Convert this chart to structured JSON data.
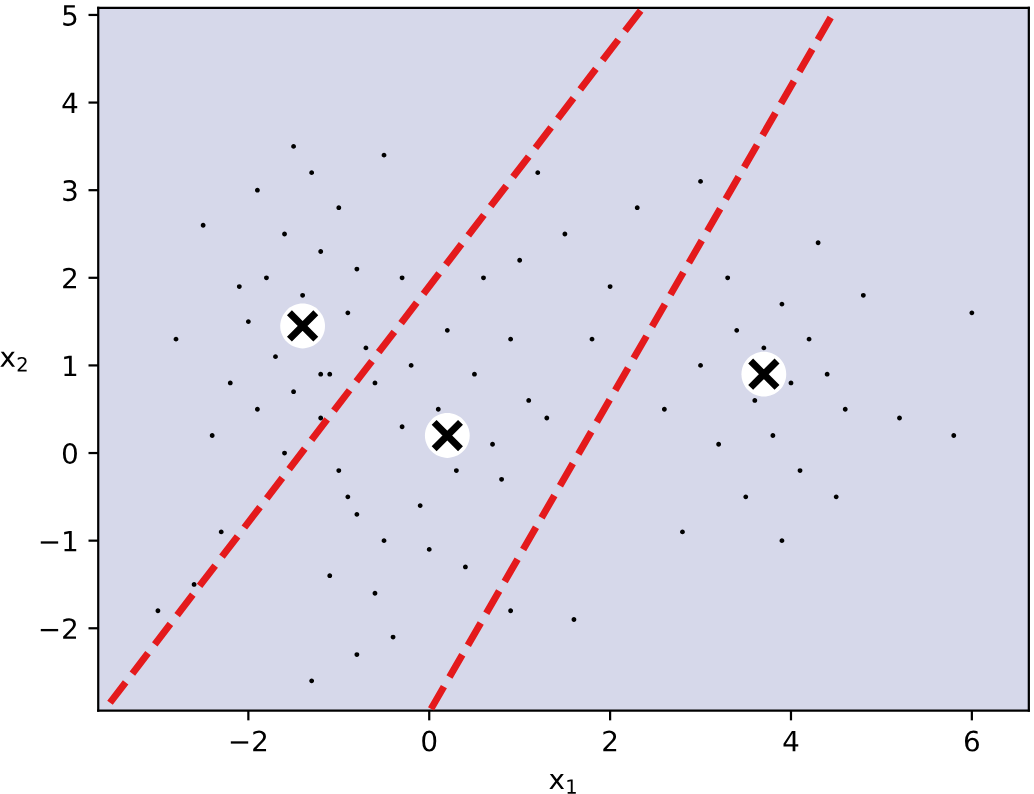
{
  "chart_data": {
    "type": "scatter",
    "xlabel": "x$_{1}$",
    "ylabel": "x$_{2}$",
    "xlim": [
      -3.66,
      6.63
    ],
    "ylim": [
      -2.94,
      5.08
    ],
    "xticks": [
      {
        "value": -2,
        "label": "−2"
      },
      0,
      2,
      4,
      6
    ],
    "yticks": [
      {
        "value": -2,
        "label": "−2"
      },
      {
        "value": -1,
        "label": "−1"
      },
      0,
      1,
      2,
      3,
      4,
      5
    ],
    "grid": false,
    "legend": false,
    "series": [
      {
        "color": "#000000",
        "marker": "circle",
        "x": [
          -2.4,
          -2.2,
          -2.0,
          -1.9,
          -1.8,
          -1.7,
          -1.6,
          -1.5,
          -1.4,
          -1.2,
          -1.2,
          -1.1,
          -1.0,
          -0.9,
          -0.8,
          -2.1,
          -1.6,
          -1.2,
          -0.7,
          -2.5,
          -1.9,
          -1.3,
          -0.6,
          -1.0,
          -2.8,
          -0.3,
          -1.5,
          -2.3,
          -0.5,
          -3.0,
          -0.8,
          -1.1,
          -0.9,
          -0.5,
          -0.3,
          -0.1,
          0.1,
          0.3,
          0.5,
          0.7,
          0.9,
          1.1,
          1.3,
          -0.6,
          0.0,
          0.4,
          0.8,
          -0.2,
          0.2,
          0.6,
          1.0,
          -0.8,
          -0.4,
          1.5,
          1.8,
          2.0,
          -1.3,
          0.9,
          2.6,
          3.0,
          3.2,
          3.4,
          3.5,
          3.6,
          3.7,
          3.8,
          3.9,
          4.0,
          4.1,
          4.2,
          4.4,
          4.6,
          3.3,
          3.9,
          4.3,
          2.8,
          4.8,
          5.2,
          5.8,
          6.0,
          3.0,
          4.5,
          1.2,
          2.3,
          -2.6,
          1.6
        ],
        "values": [
          0.2,
          0.8,
          1.5,
          0.5,
          2.0,
          1.1,
          2.5,
          0.7,
          1.8,
          0.9,
          2.3,
          0.9,
          2.8,
          1.6,
          2.1,
          1.9,
          0.0,
          0.4,
          1.2,
          2.6,
          3.0,
          3.2,
          0.8,
          -0.2,
          1.3,
          2.0,
          3.5,
          -0.9,
          3.4,
          -1.8,
          -0.7,
          -1.4,
          -0.5,
          -1.0,
          0.3,
          -0.6,
          0.5,
          -0.2,
          0.9,
          0.1,
          1.3,
          0.6,
          0.4,
          -1.6,
          -1.1,
          -1.3,
          -0.3,
          1.0,
          1.4,
          2.0,
          2.2,
          -2.3,
          -2.1,
          2.5,
          1.3,
          1.9,
          -2.6,
          -1.8,
          0.5,
          1.0,
          0.1,
          1.4,
          -0.5,
          0.6,
          1.2,
          0.2,
          1.7,
          0.8,
          -0.2,
          1.3,
          0.9,
          0.5,
          2.0,
          -1.0,
          2.4,
          -0.9,
          1.8,
          0.4,
          0.2,
          1.6,
          3.1,
          -0.5,
          3.2,
          2.8,
          -1.5,
          -1.9
        ]
      },
      {
        "type": "line",
        "color": "#e41a1c",
        "line_style": "dashed",
        "x": [
          -3.53,
          2.36
        ],
        "values": [
          -2.85,
          5.08
        ]
      },
      {
        "type": "line",
        "color": "#e41a1c",
        "line_style": "dashed",
        "x": [
          0.02,
          4.5
        ],
        "values": [
          -2.92,
          5.08
        ]
      },
      {
        "type": "scatter",
        "color": "#000000",
        "marker": "cross",
        "x": [
          -1.4,
          0.2,
          3.7
        ],
        "values": [
          1.45,
          0.2,
          0.9
        ]
      }
    ]
  }
}
